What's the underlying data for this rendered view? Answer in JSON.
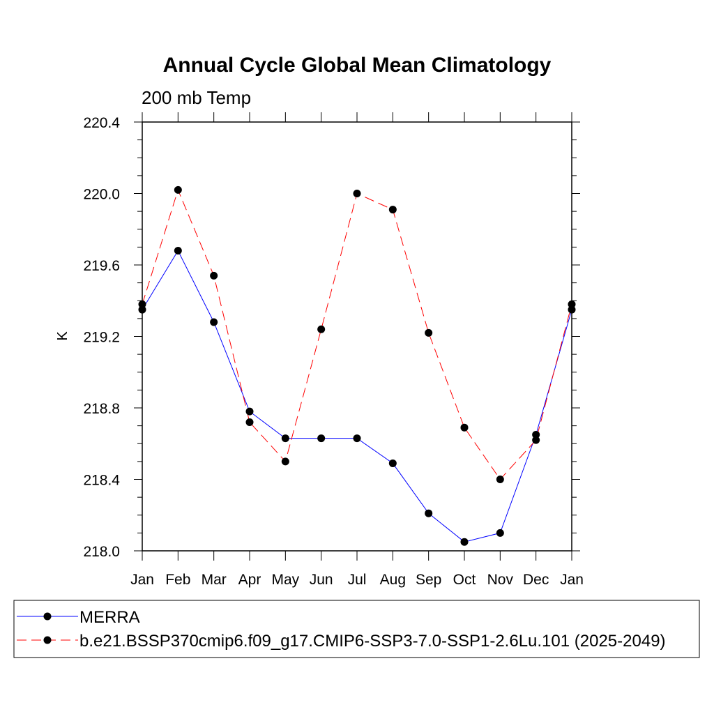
{
  "chart_data": {
    "type": "line",
    "title": "Annual Cycle Global Mean Climatology",
    "subtitle": "200 mb Temp",
    "xlabel": "",
    "ylabel": "K",
    "categories": [
      "Jan",
      "Feb",
      "Mar",
      "Apr",
      "May",
      "Jun",
      "Jul",
      "Aug",
      "Sep",
      "Oct",
      "Nov",
      "Dec",
      "Jan"
    ],
    "ylim": [
      218.0,
      220.4
    ],
    "yticks": [
      "218.0",
      "218.4",
      "218.8",
      "219.2",
      "219.6",
      "220.0",
      "220.4"
    ],
    "grid": false,
    "legend_position": "bottom",
    "series": [
      {
        "name": "MERRA",
        "color": "#0000ff",
        "line_style": "solid",
        "values": [
          219.35,
          219.68,
          219.28,
          218.78,
          218.63,
          218.63,
          218.63,
          218.49,
          218.21,
          218.05,
          218.1,
          218.65,
          219.35
        ]
      },
      {
        "name": "b.e21.BSSP370cmip6.f09_g17.CMIP6-SSP3-7.0-SSP1-2.6Lu.101 (2025-2049)",
        "color": "#ff0000",
        "line_style": "dashed",
        "values": [
          219.38,
          220.02,
          219.54,
          218.72,
          218.5,
          219.24,
          220.0,
          219.91,
          219.22,
          218.69,
          218.4,
          218.62,
          219.38
        ]
      }
    ]
  }
}
